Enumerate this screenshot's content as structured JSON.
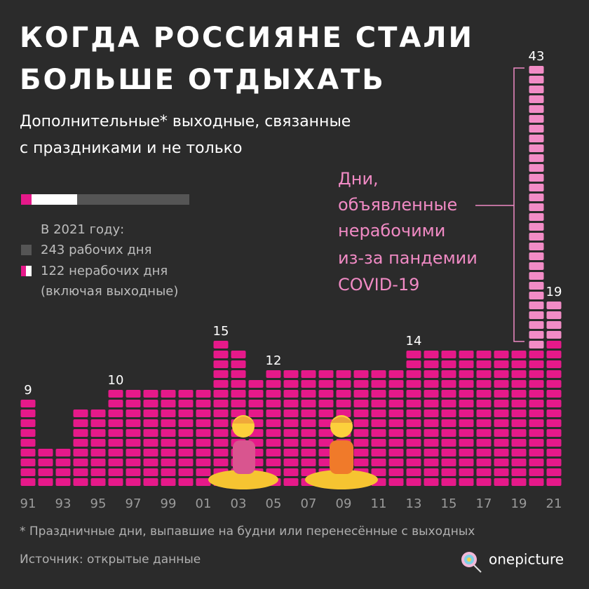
{
  "chart_data": {
    "type": "bar",
    "title": [
      "КОГДА РОССИЯНЕ СТАЛИ",
      "БОЛЬШЕ ОТДЫХАТЬ"
    ],
    "subtitle": [
      "Дополнительные* выходные, связанные",
      "с праздниками и не только"
    ],
    "legend": [
      "В 2021 году:",
      "243 рабочих дня",
      "122 нерабочих дня",
      "(включая выходные)"
    ],
    "annotation": [
      "Дни,",
      "объявленные",
      "нерабочими",
      "из-за пандемии",
      "COVID-19"
    ],
    "footnote": "* Праздничные дни, выпавшие на будни или перенесённые с выходных",
    "source": "Источник: открытые данные",
    "brand": "onepicture",
    "categories": [
      "91",
      null,
      "93",
      null,
      "95",
      null,
      "97",
      null,
      "99",
      null,
      "01",
      null,
      "03",
      null,
      "05",
      null,
      "07",
      null,
      "09",
      null,
      "11",
      null,
      "13",
      null,
      "15",
      null,
      "17",
      null,
      "19",
      null,
      "21"
    ],
    "series": [
      {
        "color": "#e6198a",
        "values": [
          9,
          4,
          4,
          8,
          8,
          10,
          10,
          10,
          10,
          10,
          10,
          15,
          14,
          11,
          12,
          12,
          12,
          12,
          12,
          12,
          12,
          12,
          14,
          14,
          14,
          14,
          14,
          14,
          14,
          14,
          15
        ]
      },
      {
        "color": "#f28cc6",
        "values": [
          null,
          null,
          null,
          null,
          null,
          null,
          null,
          null,
          null,
          null,
          null,
          null,
          null,
          null,
          null,
          null,
          null,
          null,
          null,
          null,
          null,
          null,
          null,
          null,
          null,
          null,
          null,
          null,
          null,
          29,
          4
        ]
      }
    ],
    "top_labels": [
      9,
      null,
      null,
      null,
      null,
      10,
      null,
      null,
      null,
      null,
      null,
      15,
      null,
      null,
      12,
      null,
      null,
      null,
      null,
      null,
      null,
      null,
      14,
      null,
      null,
      null,
      null,
      null,
      null,
      43,
      19
    ]
  }
}
